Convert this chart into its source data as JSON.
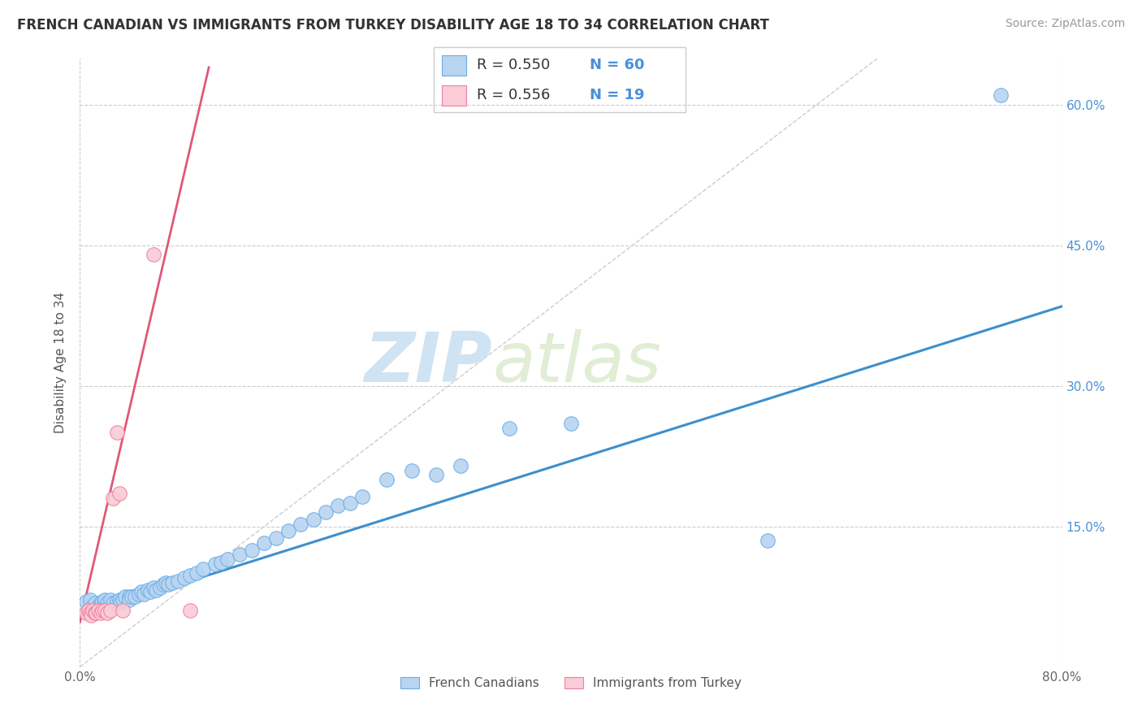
{
  "title": "FRENCH CANADIAN VS IMMIGRANTS FROM TURKEY DISABILITY AGE 18 TO 34 CORRELATION CHART",
  "source": "Source: ZipAtlas.com",
  "ylabel": "Disability Age 18 to 34",
  "xlim": [
    0.0,
    0.8
  ],
  "ylim": [
    0.0,
    0.65
  ],
  "xticks": [
    0.0,
    0.8
  ],
  "xticklabels": [
    "0.0%",
    "80.0%"
  ],
  "yticks": [
    0.15,
    0.3,
    0.45,
    0.6
  ],
  "yticklabels": [
    "15.0%",
    "30.0%",
    "45.0%",
    "60.0%"
  ],
  "right_yticks": [
    0.15,
    0.3,
    0.45,
    0.6
  ],
  "right_yticklabels": [
    "15.0%",
    "30.0%",
    "45.0%",
    "60.0%"
  ],
  "blue_scatter_x": [
    0.005,
    0.008,
    0.01,
    0.012,
    0.015,
    0.017,
    0.018,
    0.02,
    0.02,
    0.022,
    0.025,
    0.027,
    0.03,
    0.032,
    0.033,
    0.035,
    0.037,
    0.04,
    0.04,
    0.042,
    0.045,
    0.048,
    0.05,
    0.052,
    0.055,
    0.057,
    0.06,
    0.062,
    0.065,
    0.068,
    0.07,
    0.072,
    0.075,
    0.08,
    0.085,
    0.09,
    0.095,
    0.1,
    0.11,
    0.115,
    0.12,
    0.13,
    0.14,
    0.15,
    0.16,
    0.17,
    0.18,
    0.19,
    0.2,
    0.21,
    0.22,
    0.23,
    0.25,
    0.27,
    0.29,
    0.31,
    0.35,
    0.4,
    0.56,
    0.75
  ],
  "blue_scatter_y": [
    0.07,
    0.072,
    0.065,
    0.068,
    0.065,
    0.068,
    0.07,
    0.07,
    0.072,
    0.068,
    0.072,
    0.068,
    0.07,
    0.072,
    0.068,
    0.072,
    0.075,
    0.075,
    0.072,
    0.075,
    0.075,
    0.078,
    0.08,
    0.078,
    0.082,
    0.08,
    0.085,
    0.082,
    0.085,
    0.088,
    0.09,
    0.088,
    0.09,
    0.092,
    0.095,
    0.098,
    0.1,
    0.105,
    0.11,
    0.112,
    0.115,
    0.12,
    0.125,
    0.132,
    0.138,
    0.145,
    0.152,
    0.158,
    0.165,
    0.172,
    0.175,
    0.182,
    0.2,
    0.21,
    0.205,
    0.215,
    0.255,
    0.26,
    0.135,
    0.61
  ],
  "pink_scatter_x": [
    0.005,
    0.007,
    0.008,
    0.009,
    0.01,
    0.012,
    0.013,
    0.015,
    0.017,
    0.018,
    0.02,
    0.022,
    0.025,
    0.027,
    0.03,
    0.032,
    0.035,
    0.06,
    0.09
  ],
  "pink_scatter_y": [
    0.058,
    0.06,
    0.058,
    0.055,
    0.06,
    0.058,
    0.058,
    0.06,
    0.058,
    0.06,
    0.06,
    0.058,
    0.06,
    0.18,
    0.25,
    0.185,
    0.06,
    0.44,
    0.06
  ],
  "blue_line_x": [
    0.0,
    0.8
  ],
  "blue_line_y": [
    0.055,
    0.385
  ],
  "pink_line_x": [
    0.0,
    0.105
  ],
  "pink_line_y": [
    0.048,
    0.64
  ],
  "diag_line_x": [
    0.0,
    0.65
  ],
  "diag_line_y": [
    0.0,
    0.65
  ],
  "blue_fill_color": "#b8d4f0",
  "blue_edge_color": "#6aaee8",
  "pink_fill_color": "#f9ccd8",
  "pink_edge_color": "#f080a0",
  "blue_line_color": "#3d8fcc",
  "pink_line_color": "#e05878",
  "diag_color": "#cccccc",
  "legend_blue_r": "R = 0.550",
  "legend_blue_n": "N = 60",
  "legend_pink_r": "R = 0.556",
  "legend_pink_n": "N = 19",
  "watermark_zip": "ZIP",
  "watermark_atlas": "atlas",
  "title_fontsize": 12,
  "source_fontsize": 10,
  "tick_fontsize": 11,
  "ylabel_fontsize": 11
}
